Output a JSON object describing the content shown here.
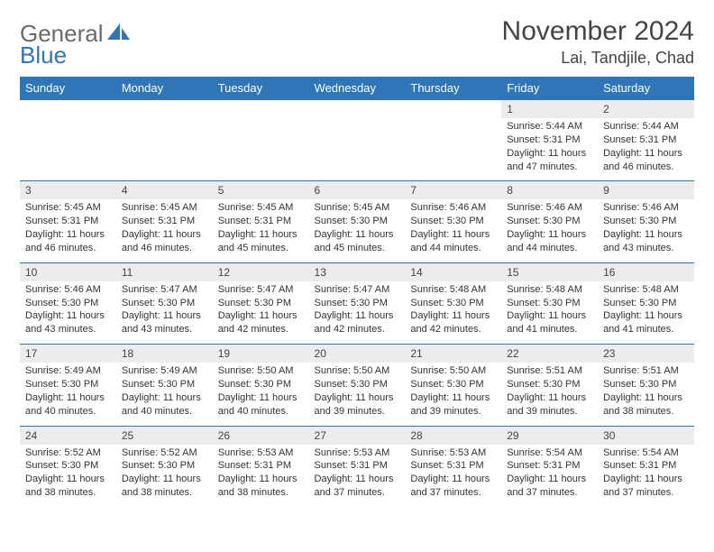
{
  "brand": {
    "line1": "General",
    "line2": "Blue"
  },
  "colors": {
    "header_bg": "#2f76b8",
    "header_text": "#ffffff",
    "daynum_bg": "#ececec",
    "rule": "#2f76b8",
    "brand_gray": "#6a6a6a",
    "brand_blue": "#2f76b8",
    "text": "#333333",
    "background": "#ffffff"
  },
  "typography": {
    "month_fontsize": 30,
    "loc_fontsize": 18,
    "header_fontsize": 13,
    "daynum_fontsize": 12,
    "body_fontsize": 11
  },
  "title": {
    "month": "November 2024",
    "location": "Lai, Tandjile, Chad"
  },
  "weekdays": [
    "Sunday",
    "Monday",
    "Tuesday",
    "Wednesday",
    "Thursday",
    "Friday",
    "Saturday"
  ],
  "labels": {
    "sunrise": "Sunrise:",
    "sunset": "Sunset:",
    "daylight_prefix": "Daylight:"
  },
  "weeks": [
    [
      null,
      null,
      null,
      null,
      null,
      {
        "n": "1",
        "sunrise": "5:44 AM",
        "sunset": "5:31 PM",
        "daylight": "11 hours and 47 minutes."
      },
      {
        "n": "2",
        "sunrise": "5:44 AM",
        "sunset": "5:31 PM",
        "daylight": "11 hours and 46 minutes."
      }
    ],
    [
      {
        "n": "3",
        "sunrise": "5:45 AM",
        "sunset": "5:31 PM",
        "daylight": "11 hours and 46 minutes."
      },
      {
        "n": "4",
        "sunrise": "5:45 AM",
        "sunset": "5:31 PM",
        "daylight": "11 hours and 46 minutes."
      },
      {
        "n": "5",
        "sunrise": "5:45 AM",
        "sunset": "5:31 PM",
        "daylight": "11 hours and 45 minutes."
      },
      {
        "n": "6",
        "sunrise": "5:45 AM",
        "sunset": "5:30 PM",
        "daylight": "11 hours and 45 minutes."
      },
      {
        "n": "7",
        "sunrise": "5:46 AM",
        "sunset": "5:30 PM",
        "daylight": "11 hours and 44 minutes."
      },
      {
        "n": "8",
        "sunrise": "5:46 AM",
        "sunset": "5:30 PM",
        "daylight": "11 hours and 44 minutes."
      },
      {
        "n": "9",
        "sunrise": "5:46 AM",
        "sunset": "5:30 PM",
        "daylight": "11 hours and 43 minutes."
      }
    ],
    [
      {
        "n": "10",
        "sunrise": "5:46 AM",
        "sunset": "5:30 PM",
        "daylight": "11 hours and 43 minutes."
      },
      {
        "n": "11",
        "sunrise": "5:47 AM",
        "sunset": "5:30 PM",
        "daylight": "11 hours and 43 minutes."
      },
      {
        "n": "12",
        "sunrise": "5:47 AM",
        "sunset": "5:30 PM",
        "daylight": "11 hours and 42 minutes."
      },
      {
        "n": "13",
        "sunrise": "5:47 AM",
        "sunset": "5:30 PM",
        "daylight": "11 hours and 42 minutes."
      },
      {
        "n": "14",
        "sunrise": "5:48 AM",
        "sunset": "5:30 PM",
        "daylight": "11 hours and 42 minutes."
      },
      {
        "n": "15",
        "sunrise": "5:48 AM",
        "sunset": "5:30 PM",
        "daylight": "11 hours and 41 minutes."
      },
      {
        "n": "16",
        "sunrise": "5:48 AM",
        "sunset": "5:30 PM",
        "daylight": "11 hours and 41 minutes."
      }
    ],
    [
      {
        "n": "17",
        "sunrise": "5:49 AM",
        "sunset": "5:30 PM",
        "daylight": "11 hours and 40 minutes."
      },
      {
        "n": "18",
        "sunrise": "5:49 AM",
        "sunset": "5:30 PM",
        "daylight": "11 hours and 40 minutes."
      },
      {
        "n": "19",
        "sunrise": "5:50 AM",
        "sunset": "5:30 PM",
        "daylight": "11 hours and 40 minutes."
      },
      {
        "n": "20",
        "sunrise": "5:50 AM",
        "sunset": "5:30 PM",
        "daylight": "11 hours and 39 minutes."
      },
      {
        "n": "21",
        "sunrise": "5:50 AM",
        "sunset": "5:30 PM",
        "daylight": "11 hours and 39 minutes."
      },
      {
        "n": "22",
        "sunrise": "5:51 AM",
        "sunset": "5:30 PM",
        "daylight": "11 hours and 39 minutes."
      },
      {
        "n": "23",
        "sunrise": "5:51 AM",
        "sunset": "5:30 PM",
        "daylight": "11 hours and 38 minutes."
      }
    ],
    [
      {
        "n": "24",
        "sunrise": "5:52 AM",
        "sunset": "5:30 PM",
        "daylight": "11 hours and 38 minutes."
      },
      {
        "n": "25",
        "sunrise": "5:52 AM",
        "sunset": "5:30 PM",
        "daylight": "11 hours and 38 minutes."
      },
      {
        "n": "26",
        "sunrise": "5:53 AM",
        "sunset": "5:31 PM",
        "daylight": "11 hours and 38 minutes."
      },
      {
        "n": "27",
        "sunrise": "5:53 AM",
        "sunset": "5:31 PM",
        "daylight": "11 hours and 37 minutes."
      },
      {
        "n": "28",
        "sunrise": "5:53 AM",
        "sunset": "5:31 PM",
        "daylight": "11 hours and 37 minutes."
      },
      {
        "n": "29",
        "sunrise": "5:54 AM",
        "sunset": "5:31 PM",
        "daylight": "11 hours and 37 minutes."
      },
      {
        "n": "30",
        "sunrise": "5:54 AM",
        "sunset": "5:31 PM",
        "daylight": "11 hours and 37 minutes."
      }
    ]
  ]
}
